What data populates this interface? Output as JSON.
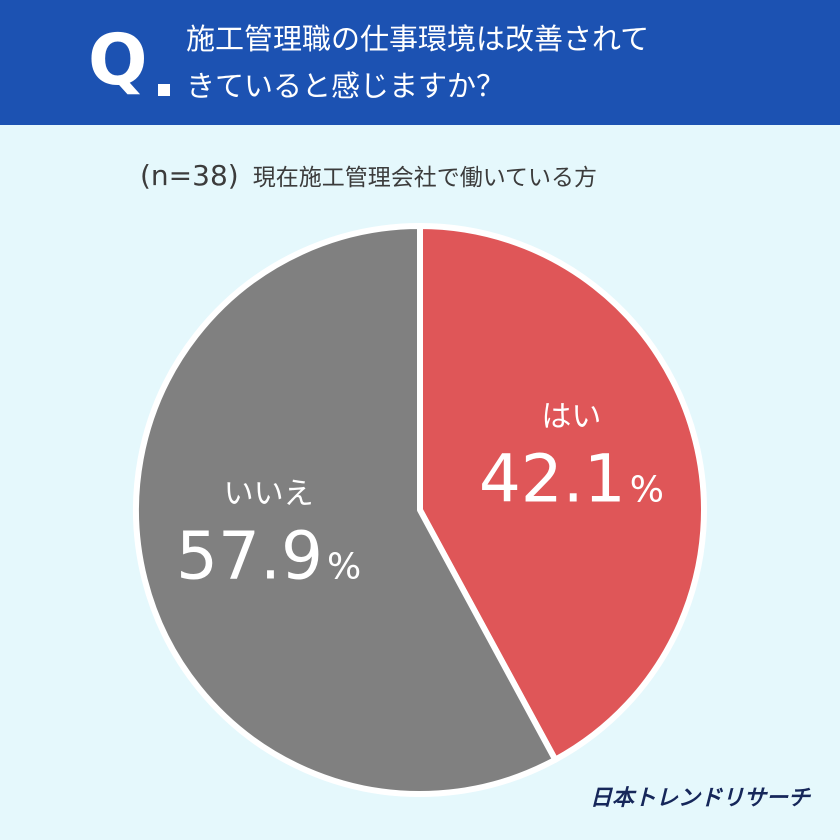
{
  "header": {
    "q_mark": "Q",
    "question_line1": "施工管理職の仕事環境は改善されて",
    "question_line2": "きていると感じますか？"
  },
  "subtitle": {
    "sample_size": "(n=38)",
    "respondents": "現在施工管理会社で働いている方"
  },
  "chart_data": {
    "type": "pie",
    "start_angle_deg": 0,
    "direction": "clockwise",
    "slices": [
      {
        "label": "はい",
        "value": 42.1,
        "value_text": "42.1",
        "unit": "%",
        "color": "#df5658"
      },
      {
        "label": "いいえ",
        "value": 57.9,
        "value_text": "57.9",
        "unit": "%",
        "color": "#808080"
      }
    ]
  },
  "colors": {
    "header_bg": "#1c52b2",
    "page_bg": "#e5f8fc",
    "slice_border": "#ffffff"
  },
  "brand": "日本トレンドリサーチ"
}
